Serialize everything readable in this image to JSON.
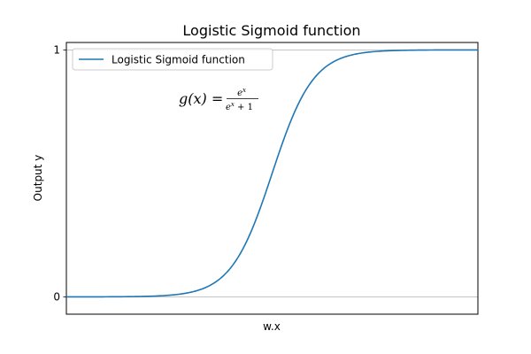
{
  "chart_data": {
    "type": "line",
    "title": "Logistic Sigmoid function",
    "xlabel": "w.x",
    "ylabel": "Output y",
    "xlim": [
      -10,
      10
    ],
    "ylim": [
      -0.07,
      1.03
    ],
    "x_range": [
      -10,
      10
    ],
    "yticks": [
      0,
      1
    ],
    "ytick_labels": [
      "0",
      "1"
    ],
    "xticks": [],
    "grid_y": true,
    "grid_x": false,
    "legend_position": "upper-left",
    "series": [
      {
        "name": "Logistic Sigmoid function",
        "color": "#1f77b4",
        "formula": "e^x / (e^x + 1)",
        "x": [
          -10,
          -9,
          -8,
          -7,
          -6,
          -5,
          -4,
          -3,
          -2,
          -1,
          0,
          1,
          2,
          3,
          4,
          5,
          6,
          7,
          8,
          9,
          10
        ],
        "y": [
          4.54e-05,
          0.0001234,
          0.0003354,
          0.000911,
          0.002473,
          0.006693,
          0.017986,
          0.047426,
          0.119203,
          0.268941,
          0.5,
          0.731059,
          0.880797,
          0.952574,
          0.982014,
          0.993307,
          0.997527,
          0.999089,
          0.999665,
          0.999877,
          0.999955
        ]
      }
    ],
    "annotation": {
      "lhs": "g(x) =",
      "numerator": "e^x",
      "denominator": "e^x + 1"
    }
  }
}
